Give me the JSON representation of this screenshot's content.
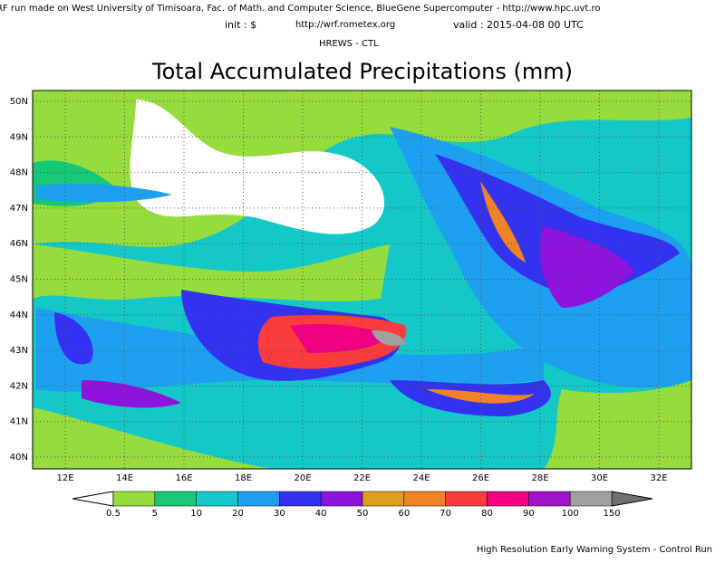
{
  "header": {
    "line1": "RF run made on West University of Timisoara, Fac. of Math. and Computer Science, BlueGene Supercomputer - http://www.hpc.uvt.ro",
    "init": "init : $",
    "url": "http://wrf.rometex.org",
    "valid": "valid : 2015-04-08  00 UTC",
    "model": "HREWS - CTL"
  },
  "title": "Total Accumulated Precipitations (mm)",
  "lat_labels": [
    "50N",
    "49N",
    "48N",
    "47N",
    "46N",
    "45N",
    "44N",
    "43N",
    "42N",
    "41N",
    "40N"
  ],
  "lon_labels": [
    "12E",
    "14E",
    "16E",
    "18E",
    "20E",
    "22E",
    "24E",
    "26E",
    "28E",
    "30E",
    "32E"
  ],
  "colorbar": {
    "levels": [
      0.5,
      5,
      10,
      20,
      30,
      40,
      50,
      60,
      70,
      80,
      90,
      100,
      150
    ],
    "colors": [
      "#96dc3c",
      "#14c878",
      "#14c8c8",
      "#1ea0f0",
      "#3232f0",
      "#8c14dc",
      "#dca01e",
      "#f08228",
      "#fa3c3c",
      "#f00082",
      "#a014c8",
      "#a0a0a0"
    ]
  },
  "footer": "High Resolution Early Warning System - Control Run"
}
